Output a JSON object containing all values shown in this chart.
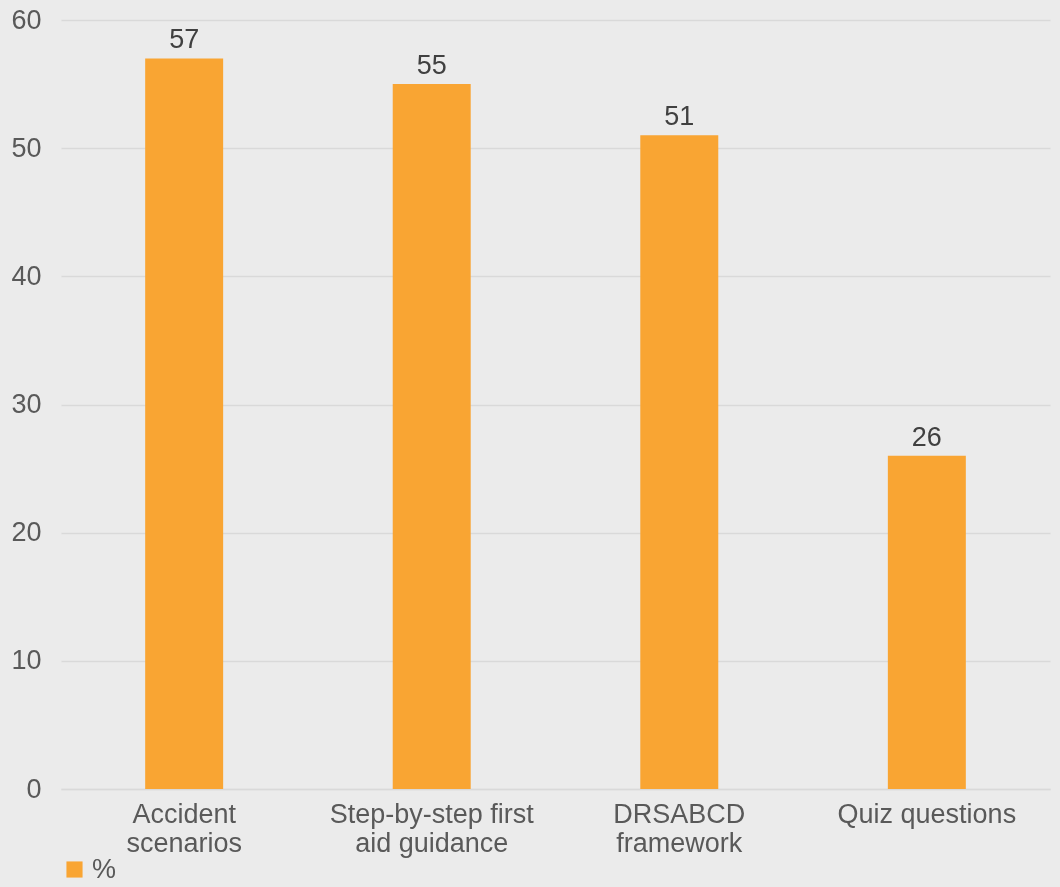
{
  "chart_data": {
    "type": "bar",
    "categories": [
      "Accident scenarios",
      "Step-by-step first aid guidance",
      "DRSABCD framework",
      "Quiz questions"
    ],
    "series": [
      {
        "name": "%",
        "color": "#f9a533",
        "values": [
          57,
          55,
          51,
          26
        ]
      }
    ],
    "ylim": [
      0,
      60
    ],
    "yticks": [
      0,
      10,
      20,
      30,
      40,
      50,
      60
    ],
    "grid": "y",
    "data_labels": true,
    "legend": "bottom"
  }
}
